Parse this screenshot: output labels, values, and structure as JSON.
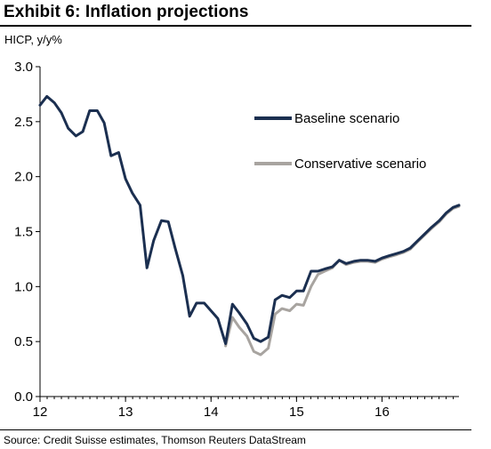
{
  "header": {
    "title": "Exhibit 6: Inflation projections",
    "unit": "HICP, y/y%"
  },
  "footer": {
    "source": "Source: Credit Suisse estimates, Thomson Reuters DataStream"
  },
  "colors": {
    "baseline": "#1b2f50",
    "conservative": "#a8a4a0",
    "axis": "#000000"
  },
  "chart_data": {
    "type": "line",
    "title": "Exhibit 6: Inflation projections",
    "ylabel": "HICP, y/y%",
    "xlim": [
      12,
      16.9
    ],
    "ylim": [
      0,
      3
    ],
    "x_ticks": [
      12,
      13,
      14,
      15,
      16
    ],
    "x_tick_labels": [
      "12",
      "13",
      "14",
      "15",
      "16"
    ],
    "y_ticks": [
      0,
      0.5,
      1,
      1.5,
      2,
      2.5,
      3
    ],
    "y_tick_labels": [
      "0.0",
      "0.5",
      "1.0",
      "1.5",
      "2.0",
      "2.5",
      "3.0"
    ],
    "grid": false,
    "legend_position": "right, upper",
    "series": [
      {
        "name": "Baseline scenario",
        "x": [
          12.0,
          12.08,
          12.17,
          12.25,
          12.33,
          12.42,
          12.5,
          12.58,
          12.67,
          12.75,
          12.83,
          12.92,
          13.0,
          13.08,
          13.17,
          13.25,
          13.33,
          13.42,
          13.5,
          13.58,
          13.67,
          13.75,
          13.83,
          13.92,
          14.0,
          14.08,
          14.17,
          14.25,
          14.33,
          14.42,
          14.5,
          14.58,
          14.67,
          14.75,
          14.83,
          14.92,
          15.0,
          15.08,
          15.17,
          15.25,
          15.33,
          15.42,
          15.5,
          15.58,
          15.67,
          15.75,
          15.83,
          15.92,
          16.0,
          16.08,
          16.17,
          16.25,
          16.33,
          16.42,
          16.5,
          16.58,
          16.67,
          16.75,
          16.83,
          16.9
        ],
        "values": [
          2.65,
          2.73,
          2.67,
          2.58,
          2.44,
          2.37,
          2.41,
          2.6,
          2.6,
          2.49,
          2.19,
          2.22,
          1.98,
          1.85,
          1.74,
          1.17,
          1.42,
          1.6,
          1.59,
          1.35,
          1.1,
          0.73,
          0.85,
          0.85,
          0.78,
          0.71,
          0.48,
          0.84,
          0.76,
          0.66,
          0.53,
          0.5,
          0.54,
          0.88,
          0.92,
          0.9,
          0.96,
          0.96,
          1.14,
          1.14,
          1.16,
          1.18,
          1.24,
          1.21,
          1.23,
          1.24,
          1.24,
          1.23,
          1.26,
          1.28,
          1.3,
          1.32,
          1.35,
          1.42,
          1.48,
          1.54,
          1.6,
          1.67,
          1.72,
          1.74
        ]
      },
      {
        "name": "Conservative scenario",
        "x": [
          14.17,
          14.25,
          14.33,
          14.42,
          14.5,
          14.58,
          14.67,
          14.75,
          14.83,
          14.92,
          15.0,
          15.08,
          15.17,
          15.25,
          15.33,
          15.42,
          15.5,
          15.58,
          15.67,
          15.75,
          15.83,
          15.92,
          16.0,
          16.08,
          16.17,
          16.25,
          16.33,
          16.42,
          16.5,
          16.58,
          16.67,
          16.75,
          16.83,
          16.9
        ],
        "values": [
          0.46,
          0.72,
          0.63,
          0.55,
          0.41,
          0.38,
          0.44,
          0.75,
          0.8,
          0.78,
          0.84,
          0.83,
          1.0,
          1.11,
          1.14,
          1.17,
          1.24,
          1.2,
          1.22,
          1.23,
          1.23,
          1.22,
          1.25,
          1.27,
          1.29,
          1.31,
          1.34,
          1.41,
          1.47,
          1.53,
          1.59,
          1.66,
          1.71,
          1.73
        ]
      }
    ]
  }
}
